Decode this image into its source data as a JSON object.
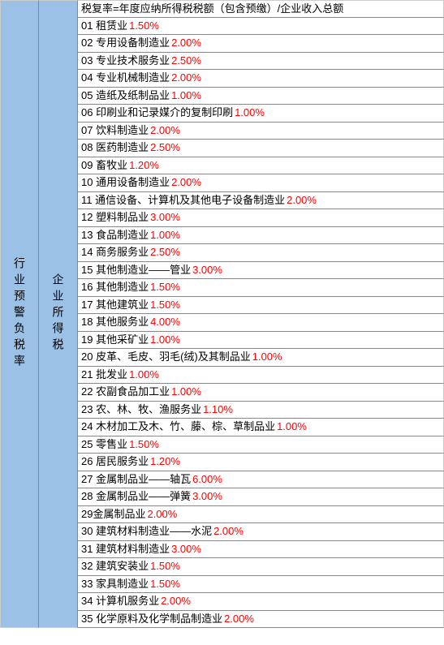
{
  "leftLabel": "行业预警负税率",
  "midLabel": "企业所得税",
  "headerFormula": "税复率=年度应纳所得税税额（包含预缴）/企业收入总额",
  "rows": [
    {
      "num": "01",
      "name": "租赁业",
      "rate": "1.50%"
    },
    {
      "num": "02",
      "name": "专用设备制造业",
      "rate": "2.00%"
    },
    {
      "num": "03",
      "name": "专业技术服务业",
      "rate": "2.50%"
    },
    {
      "num": "04",
      "name": "专业机械制造业",
      "rate": "2.00%"
    },
    {
      "num": "05",
      "name": "造纸及纸制品业",
      "rate": "1.00%"
    },
    {
      "num": "06",
      "name": "印刷业和记录媒介的复制印刷",
      "rate": "1.00%"
    },
    {
      "num": "07",
      "name": "饮料制造业",
      "rate": "2.00%"
    },
    {
      "num": "08",
      "name": "医药制造业",
      "rate": "2.50%"
    },
    {
      "num": "09",
      "name": "畜牧业",
      "rate": "1.20%"
    },
    {
      "num": "10",
      "name": "通用设备制造业",
      "rate": "2.00%"
    },
    {
      "num": "11",
      "name": "通信设备、计算机及其他电子设备制造业",
      "rate": "2.00%"
    },
    {
      "num": "12",
      "name": "塑料制品业",
      "rate": "3.00%"
    },
    {
      "num": "13",
      "name": "食品制造业",
      "rate": "1.00%"
    },
    {
      "num": "14",
      "name": "商务服务业",
      "rate": "2.50%"
    },
    {
      "num": "15",
      "name": "其他制造业——管业",
      "rate": "3.00%"
    },
    {
      "num": "16",
      "name": "其他制造业",
      "rate": "1.50%"
    },
    {
      "num": "17",
      "name": "其他建筑业",
      "rate": "1.50%"
    },
    {
      "num": "18",
      "name": "其他服务业",
      "rate": "4.00%"
    },
    {
      "num": "19",
      "name": "其他采矿业",
      "rate": "1.00%"
    },
    {
      "num": "20",
      "name": "皮革、毛皮、羽毛(绒)及其制品业",
      "rate": "1.00%"
    },
    {
      "num": "21",
      "name": "批发业",
      "rate": "1.00%"
    },
    {
      "num": "22",
      "name": "农副食品加工业",
      "rate": "1.00%"
    },
    {
      "num": "23",
      "name": "农、林、牧、渔服务业",
      "rate": "1.10%"
    },
    {
      "num": "24",
      "name": "木材加工及木、竹、藤、棕、草制品业",
      "rate": "1.00%"
    },
    {
      "num": "25",
      "name": "零售业",
      "rate": "1.50%"
    },
    {
      "num": "26",
      "name": "居民服务业",
      "rate": "1.20%"
    },
    {
      "num": "27",
      "name": "金属制品业——轴瓦",
      "rate": "6.00%"
    },
    {
      "num": "28",
      "name": "金属制品业——弹簧",
      "rate": "3.00%"
    },
    {
      "num": "29",
      "name": "金属制品业",
      "rate": "2.00%"
    },
    {
      "num": "30",
      "name": "建筑材料制造业——水泥",
      "rate": "2.00%"
    },
    {
      "num": "31",
      "name": "建筑材料制造业",
      "rate": "3.00%"
    },
    {
      "num": "32",
      "name": "建筑安装业",
      "rate": "1.50%"
    },
    {
      "num": "33",
      "name": "家具制造业",
      "rate": "1.50%"
    },
    {
      "num": "34",
      "name": "计算机服务业",
      "rate": "2.00%"
    },
    {
      "num": "35",
      "name": "化学原料及化学制品制造业",
      "rate": "2.00%"
    }
  ],
  "colors": {
    "leftBg": "#9bc2e6",
    "rateColor": "#ff0000",
    "textColor": "#000000",
    "borderColor": "#888888"
  }
}
